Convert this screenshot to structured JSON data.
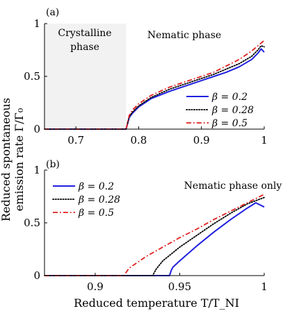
{
  "figure": {
    "ylabel_line1": "Reduced spontaneous",
    "ylabel_line2": "emission rate Γ/Γ₀",
    "xlabel": "Reduced temperature T/T_NI"
  },
  "chart_data": [
    {
      "type": "line",
      "panel_label": "(a)",
      "xlim": [
        0.65,
        1.0
      ],
      "ylim": [
        0,
        1
      ],
      "x_ticks": [
        "0.7",
        "0.8",
        "0.9",
        "1"
      ],
      "y_ticks": [
        "0",
        "0.5",
        "1"
      ],
      "grid": false,
      "shaded_region": {
        "x_range": [
          0.65,
          0.78
        ],
        "label_line1": "Crystalline",
        "label_line2": "phase",
        "color": "#f2f2f2"
      },
      "annotation": "Nematic phase",
      "legend_position": "bottom-right",
      "transition_x": 0.78,
      "series": [
        {
          "name": "β = 0.2",
          "color": "#1f1fe0",
          "style": "solid",
          "x": [
            0.65,
            0.78,
            0.785,
            0.79,
            0.8,
            0.82,
            0.85,
            0.88,
            0.9,
            0.92,
            0.94,
            0.96,
            0.98,
            0.99,
            0.995,
            1.0
          ],
          "y": [
            0.0,
            0.0,
            0.11,
            0.15,
            0.21,
            0.29,
            0.36,
            0.42,
            0.46,
            0.5,
            0.54,
            0.59,
            0.66,
            0.72,
            0.76,
            0.73
          ]
        },
        {
          "name": "β = 0.28",
          "color": "#000000",
          "style": "dotted",
          "x": [
            0.65,
            0.78,
            0.785,
            0.79,
            0.8,
            0.82,
            0.85,
            0.88,
            0.9,
            0.92,
            0.94,
            0.96,
            0.98,
            0.99,
            0.995,
            1.0
          ],
          "y": [
            0.0,
            0.0,
            0.12,
            0.16,
            0.22,
            0.3,
            0.38,
            0.44,
            0.48,
            0.52,
            0.57,
            0.62,
            0.69,
            0.75,
            0.79,
            0.78
          ]
        },
        {
          "name": "β = 0.5",
          "color": "#e01f1f",
          "style": "dashdot",
          "x": [
            0.65,
            0.78,
            0.785,
            0.79,
            0.8,
            0.82,
            0.85,
            0.88,
            0.9,
            0.92,
            0.94,
            0.96,
            0.98,
            0.99,
            1.0
          ],
          "y": [
            0.0,
            0.0,
            0.13,
            0.18,
            0.24,
            0.32,
            0.4,
            0.46,
            0.5,
            0.54,
            0.6,
            0.66,
            0.74,
            0.79,
            0.84
          ]
        }
      ]
    },
    {
      "type": "line",
      "panel_label": "(b)",
      "xlim": [
        0.87,
        1.0
      ],
      "ylim": [
        0,
        1
      ],
      "x_ticks": [
        "0.9",
        "0.95",
        "1"
      ],
      "y_ticks": [
        "0",
        "0.5",
        "1"
      ],
      "grid": false,
      "annotation": "Nematic phase only",
      "legend_position": "top-left",
      "series": [
        {
          "name": "β = 0.2",
          "color": "#1f1fe0",
          "style": "solid",
          "x": [
            0.87,
            0.944,
            0.945,
            0.946,
            0.95,
            0.96,
            0.97,
            0.98,
            0.99,
            0.995,
            1.0
          ],
          "y": [
            0.0,
            0.0,
            0.05,
            0.08,
            0.14,
            0.28,
            0.41,
            0.53,
            0.64,
            0.69,
            0.65
          ]
        },
        {
          "name": "β = 0.28",
          "color": "#000000",
          "style": "dotted",
          "x": [
            0.87,
            0.934,
            0.936,
            0.94,
            0.95,
            0.96,
            0.97,
            0.98,
            0.99,
            1.0
          ],
          "y": [
            0.0,
            0.0,
            0.06,
            0.14,
            0.27,
            0.38,
            0.49,
            0.59,
            0.68,
            0.74
          ]
        },
        {
          "name": "β = 0.5",
          "color": "#e01f1f",
          "style": "dashdot",
          "x": [
            0.87,
            0.917,
            0.92,
            0.93,
            0.94,
            0.95,
            0.96,
            0.97,
            0.98,
            0.99,
            1.0
          ],
          "y": [
            0.0,
            0.0,
            0.07,
            0.18,
            0.27,
            0.36,
            0.44,
            0.53,
            0.61,
            0.69,
            0.77
          ]
        }
      ]
    }
  ]
}
